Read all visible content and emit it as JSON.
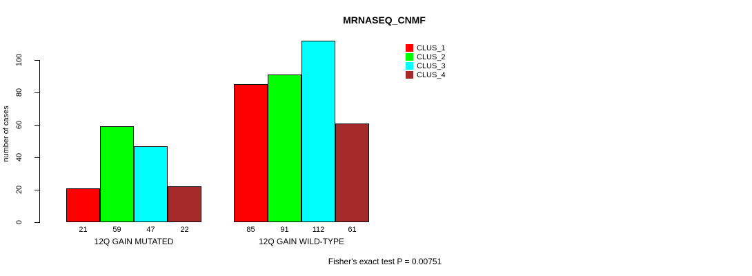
{
  "chart_data": {
    "type": "bar",
    "title": "MRNASEQ_CNMF",
    "xlabel": "",
    "ylabel": "number of cases",
    "categories": [
      "12Q GAIN MUTATED",
      "12Q GAIN WILD-TYPE"
    ],
    "series": [
      {
        "name": "CLUS_1",
        "color": "#FF0000",
        "values": [
          21,
          85
        ]
      },
      {
        "name": "CLUS_2",
        "color": "#00FF00",
        "values": [
          59,
          91
        ]
      },
      {
        "name": "CLUS_3",
        "color": "#00FFFF",
        "values": [
          47,
          112
        ]
      },
      {
        "name": "CLUS_4",
        "color": "#A52A2A",
        "values": [
          22,
          61
        ]
      }
    ],
    "yticks": [
      0,
      20,
      40,
      60,
      80,
      100
    ],
    "ylim": [
      0,
      112
    ],
    "grid": false,
    "legend_position": "top-right",
    "bar_value_labels": true,
    "annotation": "Fisher's exact test P = 0.00751"
  }
}
